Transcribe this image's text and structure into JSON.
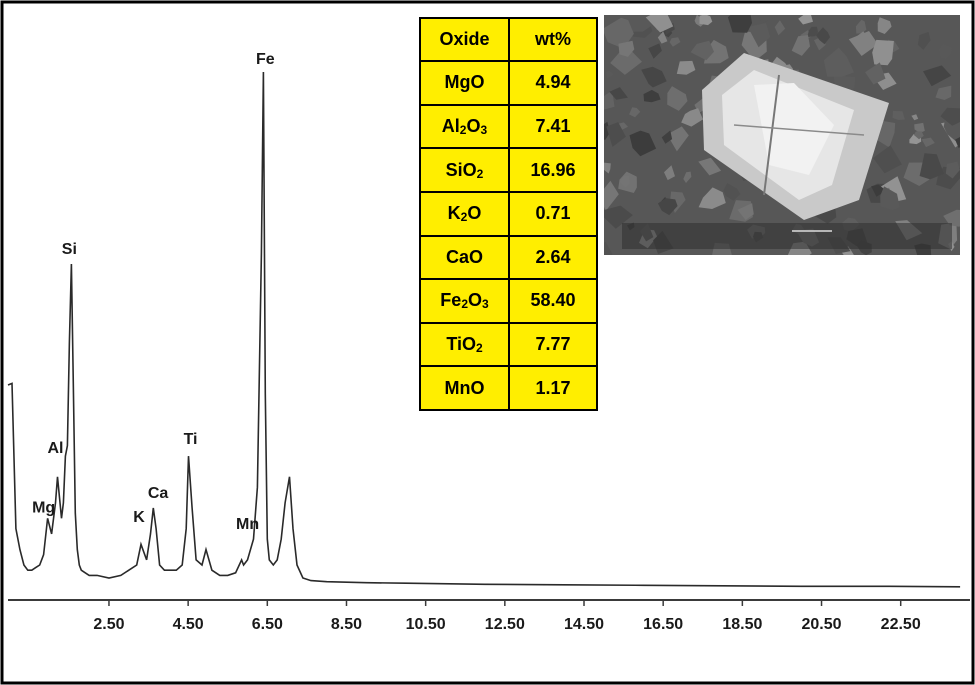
{
  "chart_data": {
    "type": "line",
    "title": "",
    "xlabel": "",
    "ylabel": "",
    "xlim": [
      0.0,
      24.2
    ],
    "ylim": [
      0,
      100
    ],
    "grid": false,
    "x_tick_labels": [
      "2.50",
      "4.50",
      "6.50",
      "8.50",
      "10.50",
      "12.50",
      "14.50",
      "16.50",
      "18.50",
      "20.50",
      "22.50"
    ],
    "x_ticks": [
      2.5,
      4.5,
      6.5,
      8.5,
      10.5,
      12.5,
      14.5,
      16.5,
      18.5,
      20.5,
      22.5
    ],
    "series": [
      {
        "x": [
          0.05,
          0.15,
          0.25,
          0.35,
          0.45,
          0.55,
          0.65,
          0.75,
          0.85,
          0.95,
          1.05,
          1.15,
          1.2,
          1.25,
          1.3,
          1.35,
          1.4,
          1.45,
          1.5,
          1.55,
          1.6,
          1.65,
          1.7,
          1.75,
          1.8,
          1.9,
          2.0,
          2.2,
          2.5,
          2.8,
          3.0,
          3.2,
          3.31,
          3.45,
          3.55,
          3.62,
          3.69,
          3.78,
          3.9,
          4.05,
          4.2,
          4.35,
          4.45,
          4.51,
          4.6,
          4.7,
          4.85,
          4.95,
          5.1,
          5.3,
          5.5,
          5.7,
          5.85,
          5.9,
          6.0,
          6.15,
          6.25,
          6.35,
          6.4,
          6.45,
          6.5,
          6.55,
          6.65,
          6.75,
          6.85,
          6.95,
          7.06,
          7.15,
          7.25,
          7.4,
          7.6,
          8.0,
          9.0,
          10.0,
          12.0,
          14.0,
          16.0,
          18.0,
          20.0,
          22.0,
          24.0
        ],
        "y": [
          40,
          12,
          8,
          5,
          4,
          4,
          4.5,
          5,
          7,
          14,
          11,
          17,
          22,
          18,
          14,
          17,
          26,
          28,
          48,
          63,
          40,
          15,
          8,
          5,
          4,
          3.5,
          3,
          3,
          2.5,
          3,
          4,
          5,
          9,
          6,
          11,
          16,
          12,
          5,
          4,
          4,
          4,
          5,
          12,
          26,
          16,
          6,
          5,
          8,
          4,
          3,
          3,
          3.5,
          6,
          5,
          6,
          10,
          20,
          65,
          100,
          38,
          10,
          6,
          5,
          6,
          10,
          17,
          22,
          12,
          5,
          2.5,
          2,
          1.8,
          1.6,
          1.5,
          1.3,
          1.2,
          1.1,
          1.0,
          0.9,
          0.9,
          0.8
        ]
      }
    ],
    "annotations": [
      {
        "text": "Fe",
        "x": 6.4
      },
      {
        "text": "Si",
        "x": 1.55
      },
      {
        "text": "Al",
        "x": 1.2
      },
      {
        "text": "Mg",
        "x": 0.85
      },
      {
        "text": "Ti",
        "x": 4.51
      },
      {
        "text": "Ca",
        "x": 3.69
      },
      {
        "text": "K",
        "x": 3.31
      },
      {
        "text": "Mn",
        "x": 5.9
      }
    ]
  },
  "table": {
    "header": [
      "Oxide",
      "wt%"
    ],
    "rows": [
      {
        "pre": "MgO",
        "sub": "",
        "post": "",
        "value": "4.94"
      },
      {
        "pre": "Al",
        "sub": "2",
        "post": "O",
        "sub2": "3",
        "value": "7.41"
      },
      {
        "pre": "SiO",
        "sub": "2",
        "post": "",
        "value": "16.96"
      },
      {
        "pre": "K",
        "sub": "2",
        "post": "O",
        "value": "0.71"
      },
      {
        "pre": "CaO",
        "sub": "",
        "post": "",
        "value": "2.64"
      },
      {
        "pre": "Fe",
        "sub": "2",
        "post": "O",
        "sub2": "3",
        "value": "58.40"
      },
      {
        "pre": "TiO",
        "sub": "2",
        "post": "",
        "value": "7.77"
      },
      {
        "pre": "MnO",
        "sub": "",
        "post": "",
        "value": "1.17"
      }
    ]
  },
  "colors": {
    "frame": "#000000",
    "spectrum": "#2a2a2a",
    "table_bg": "#ffee00"
  }
}
